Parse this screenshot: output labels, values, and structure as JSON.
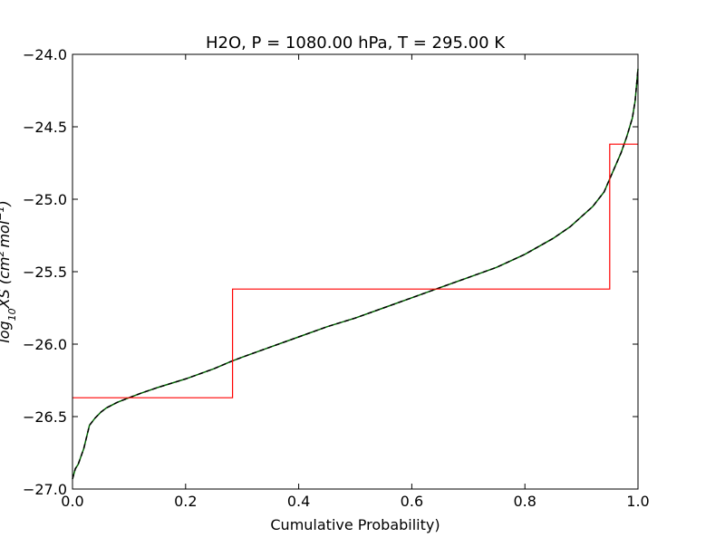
{
  "chart_data": {
    "type": "line",
    "title": "H2O, P = 1080.00 hPa, T = 295.00 K",
    "xlabel": "Cumulative Probability)",
    "ylabel": "log10 XS (cm^2 mol^-1)",
    "ylabel_parts": {
      "prefix": "log",
      "subscript": "10",
      "middle": "XS (cm",
      "sup1": "2",
      "mid2": "mol",
      "sup2": "−1",
      "suffix": ")"
    },
    "xlim": [
      0.0,
      1.0
    ],
    "ylim": [
      -27.0,
      -24.0
    ],
    "xticks": [
      0.0,
      0.2,
      0.4,
      0.6,
      0.8,
      1.0
    ],
    "xtick_labels": [
      "0.0",
      "0.2",
      "0.4",
      "0.6",
      "0.8",
      "1.0"
    ],
    "yticks": [
      -27.0,
      -26.5,
      -26.0,
      -25.5,
      -25.0,
      -24.5,
      -24.0
    ],
    "ytick_labels": [
      "−27.0",
      "−26.5",
      "−26.0",
      "−25.5",
      "−25.0",
      "−24.5",
      "−24.0"
    ],
    "grid": false,
    "series": [
      {
        "color": "#006400",
        "style": "solid",
        "x": [
          0.0,
          0.005,
          0.01,
          0.02,
          0.03,
          0.04,
          0.05,
          0.06,
          0.08,
          0.1,
          0.12,
          0.15,
          0.2,
          0.25,
          0.28,
          0.3,
          0.35,
          0.4,
          0.45,
          0.5,
          0.55,
          0.6,
          0.65,
          0.7,
          0.75,
          0.8,
          0.85,
          0.88,
          0.9,
          0.92,
          0.94,
          0.95,
          0.96,
          0.97,
          0.98,
          0.99,
          0.995,
          1.0
        ],
        "y": [
          -26.93,
          -26.86,
          -26.83,
          -26.72,
          -26.56,
          -26.51,
          -26.47,
          -26.44,
          -26.4,
          -26.37,
          -26.34,
          -26.3,
          -26.24,
          -26.17,
          -26.12,
          -26.09,
          -26.02,
          -25.95,
          -25.88,
          -25.82,
          -25.75,
          -25.68,
          -25.61,
          -25.54,
          -25.47,
          -25.38,
          -25.27,
          -25.19,
          -25.12,
          -25.05,
          -24.95,
          -24.86,
          -24.77,
          -24.68,
          -24.57,
          -24.44,
          -24.32,
          -24.1
        ]
      },
      {
        "color": "#000000",
        "style": "dashed",
        "x": [
          0.0,
          0.005,
          0.01,
          0.02,
          0.03,
          0.04,
          0.05,
          0.06,
          0.08,
          0.1,
          0.12,
          0.15,
          0.2,
          0.25,
          0.28,
          0.3,
          0.35,
          0.4,
          0.45,
          0.5,
          0.55,
          0.6,
          0.65,
          0.7,
          0.75,
          0.8,
          0.85,
          0.88,
          0.9,
          0.92,
          0.94,
          0.95,
          0.96,
          0.97,
          0.98,
          0.99,
          0.995,
          1.0
        ],
        "y": [
          -26.93,
          -26.86,
          -26.83,
          -26.72,
          -26.56,
          -26.51,
          -26.47,
          -26.44,
          -26.4,
          -26.37,
          -26.34,
          -26.3,
          -26.24,
          -26.17,
          -26.12,
          -26.09,
          -26.02,
          -25.95,
          -25.88,
          -25.82,
          -25.75,
          -25.68,
          -25.61,
          -25.54,
          -25.47,
          -25.38,
          -25.27,
          -25.19,
          -25.12,
          -25.05,
          -24.95,
          -24.86,
          -24.77,
          -24.68,
          -24.57,
          -24.44,
          -24.32,
          -24.1
        ]
      },
      {
        "color": "#ff0000",
        "style": "step",
        "x": [
          0.0,
          0.283,
          0.283,
          0.95,
          0.95,
          1.0
        ],
        "y": [
          -26.37,
          -26.37,
          -25.62,
          -25.62,
          -24.62,
          -24.62
        ]
      }
    ]
  }
}
